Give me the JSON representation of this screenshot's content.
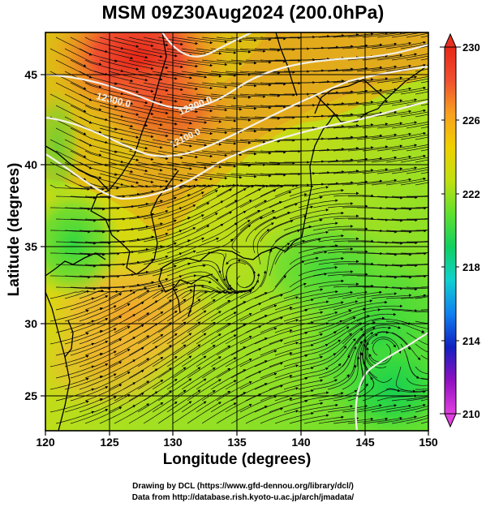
{
  "title": "MSM 09Z30Aug2024 (200.0hPa)",
  "x_axis": {
    "label": "Longitude (degrees)",
    "ticks": [
      "120",
      "125",
      "130",
      "135",
      "140",
      "145",
      "150"
    ],
    "range": [
      120,
      150
    ]
  },
  "y_axis": {
    "label": "Latitude  (degrees)",
    "ticks": [
      "25",
      "30",
      "35",
      "40",
      "45"
    ],
    "range": [
      22.4,
      47.6
    ]
  },
  "colorbar": {
    "ticks": [
      "210",
      "214",
      "218",
      "222",
      "226",
      "230"
    ],
    "range": [
      210,
      230
    ],
    "colors": [
      "#e040e0",
      "#9010c0",
      "#1020c0",
      "#1080f0",
      "#10d0d0",
      "#10d060",
      "#60e030",
      "#c0e010",
      "#f0d000",
      "#f8a020",
      "#f05030",
      "#e82818"
    ]
  },
  "contours": [
    {
      "label": "12300.0"
    },
    {
      "label": "12200.0"
    },
    {
      "label": "12100.0"
    }
  ],
  "credits": {
    "line1": "Drawing by DCL (https://www.gfd-dennou.org/library/dcl/)",
    "line2": "Data from http://database.rish.kyoto-u.ac.jp/arch/jmadata/"
  },
  "chart_data": {
    "type": "heatmap",
    "variable": "temperature with wind streamlines",
    "level": "200.0hPa",
    "xlabel": "Longitude (degrees)",
    "ylabel": "Latitude  (degrees)",
    "xlim": [
      120,
      150
    ],
    "ylim": [
      22.4,
      47.6
    ],
    "color_range": [
      210,
      230
    ],
    "contour_labels": [
      "12300.0",
      "12200.0",
      "12100.0"
    ]
  }
}
